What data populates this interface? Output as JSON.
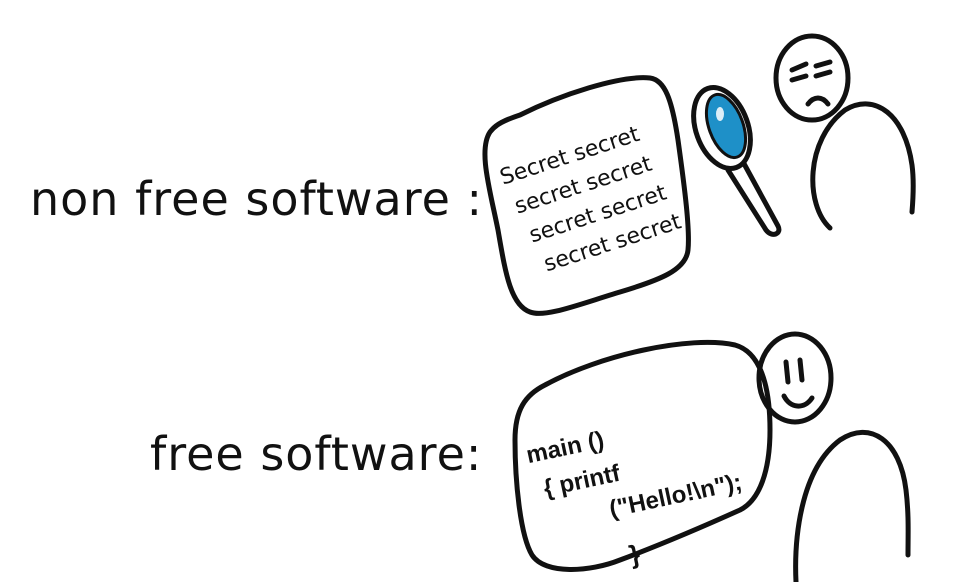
{
  "labels": {
    "non_free": "non free software :",
    "free": "free software:"
  },
  "secret_document": {
    "lines": [
      "Secret secret",
      "secret secret",
      "secret secret",
      "secret secret"
    ]
  },
  "code_document": {
    "lines": [
      "main ()",
      "{  printf",
      "(\"Hello!\\n\");",
      "}"
    ]
  },
  "colors": {
    "ink": "#111111",
    "lens": "#1e90c8",
    "paper": "#ffffff"
  }
}
